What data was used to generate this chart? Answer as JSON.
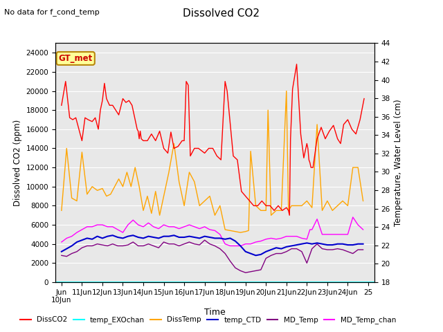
{
  "title": "Dissolved CO2",
  "subtitle": "No data for f_cond_temp",
  "xlabel": "Time",
  "ylabel_left": "Dissolved CO2 (ppm)",
  "ylabel_right": "Temperature, Water Level (cm)",
  "ylim_left": [
    0,
    25000
  ],
  "ylim_right": [
    18,
    44
  ],
  "yticks_left": [
    0,
    2000,
    4000,
    6000,
    8000,
    10000,
    12000,
    14000,
    16000,
    18000,
    20000,
    22000,
    24000
  ],
  "yticks_right": [
    18,
    20,
    22,
    24,
    26,
    28,
    30,
    32,
    34,
    36,
    38,
    40,
    42,
    44
  ],
  "x_start": 9.7,
  "x_end": 25.3,
  "xtick_positions": [
    10,
    11,
    12,
    13,
    14,
    15,
    16,
    17,
    18,
    19,
    20,
    21,
    22,
    23,
    24,
    25
  ],
  "xtick_labels": [
    "Jun\n10Jun",
    "11Jun",
    "12Jun",
    "13Jun",
    "14Jun",
    "15Jun",
    "16Jun",
    "17Jun",
    "18Jun",
    "19Jun",
    "20Jun",
    "21Jun",
    "22Jun",
    "23Jun",
    "24Jun",
    "25"
  ],
  "plot_bg_color": "#e8e8e8",
  "DissCO2_color": "#ff0000",
  "DissTemp_color": "#ffa500",
  "temp_CTD_color": "#0000cd",
  "MD_Temp_color": "#800080",
  "MD_Temp_chan_color": "#ff00ff",
  "temp_EXOchan_color": "#00ffff",
  "DissCO2_x": [
    10,
    10.2,
    10.4,
    10.55,
    10.7,
    11.0,
    11.15,
    11.3,
    11.5,
    11.65,
    11.8,
    11.9,
    12.0,
    12.1,
    12.2,
    12.35,
    12.5,
    12.65,
    12.8,
    13.0,
    13.15,
    13.3,
    13.45,
    13.5,
    13.55,
    13.6,
    13.7,
    13.75,
    13.8,
    13.85,
    13.9,
    14.0,
    14.2,
    14.4,
    14.6,
    14.8,
    15.0,
    15.2,
    15.35,
    15.5,
    15.7,
    15.9,
    16.0,
    16.1,
    16.2,
    16.3,
    16.5,
    16.7,
    17.0,
    17.2,
    17.4,
    17.6,
    17.8,
    18.0,
    18.1,
    18.4,
    18.6,
    18.8,
    19.0,
    19.2,
    19.4,
    19.6,
    19.8,
    20.0,
    20.2,
    20.4,
    20.6,
    20.8,
    21.0,
    21.1,
    21.15,
    21.2,
    21.3,
    21.5,
    21.7,
    21.85,
    22.0,
    22.05,
    22.1,
    22.15,
    22.2,
    22.3,
    22.5,
    22.7,
    22.9,
    23.1,
    23.3,
    23.5,
    23.65,
    23.8,
    24.0,
    24.2,
    24.4,
    24.6,
    24.8
  ],
  "DissCO2_y": [
    18500,
    21000,
    17200,
    17000,
    17200,
    14800,
    17200,
    17000,
    16800,
    17200,
    16000,
    18000,
    19000,
    20800,
    19200,
    18500,
    18500,
    18000,
    17500,
    19200,
    18800,
    19000,
    18500,
    18000,
    17500,
    17000,
    16000,
    15800,
    15000,
    15800,
    15000,
    14800,
    14800,
    15500,
    14800,
    15800,
    14000,
    13500,
    15700,
    14000,
    14200,
    14800,
    14800,
    21000,
    20600,
    13200,
    14000,
    14000,
    13500,
    14000,
    14000,
    13200,
    12800,
    21000,
    20000,
    13200,
    12800,
    9500,
    9000,
    8500,
    8000,
    8000,
    8500,
    8000,
    8000,
    7500,
    8000,
    7500,
    7800,
    7500,
    7000,
    15000,
    20200,
    22800,
    15500,
    13000,
    14500,
    14000,
    12800,
    12500,
    12000,
    12000,
    15000,
    16200,
    15000,
    15800,
    16400,
    15000,
    14500,
    16500,
    17000,
    16000,
    15500,
    17000,
    19200
  ],
  "DissTemp_x": [
    10,
    10.25,
    10.5,
    10.75,
    11.0,
    11.25,
    11.5,
    11.75,
    12.0,
    12.2,
    12.4,
    12.6,
    12.8,
    13.0,
    13.2,
    13.4,
    13.6,
    13.8,
    14.0,
    14.2,
    14.4,
    14.6,
    14.8,
    15.0,
    15.25,
    15.5,
    15.75,
    16.0,
    16.25,
    16.5,
    16.75,
    17.0,
    17.25,
    17.5,
    17.75,
    18.0,
    18.25,
    18.5,
    18.75,
    19.0,
    19.15,
    19.25,
    19.5,
    19.75,
    20.0,
    20.1,
    20.25,
    20.5,
    20.75,
    21.0,
    21.1,
    21.25,
    21.5,
    21.75,
    22.0,
    22.25,
    22.5,
    22.75,
    23.0,
    23.25,
    23.5,
    23.75,
    24.0,
    24.25,
    24.5,
    24.75
  ],
  "DissTemp_y": [
    7500,
    14000,
    8800,
    8500,
    13600,
    9200,
    10000,
    9600,
    9800,
    9000,
    9200,
    10000,
    10800,
    10000,
    11500,
    10000,
    12000,
    10000,
    7500,
    9000,
    7200,
    9500,
    7000,
    9000,
    11500,
    14500,
    10500,
    8000,
    11500,
    10500,
    8000,
    8500,
    9000,
    7000,
    8000,
    5500,
    5400,
    5300,
    5200,
    5300,
    5400,
    13700,
    8000,
    7500,
    7500,
    18000,
    7000,
    7500,
    7500,
    20000,
    7500,
    8000,
    8000,
    8000,
    8500,
    7800,
    16500,
    7500,
    8500,
    7500,
    8000,
    8500,
    8000,
    12000,
    12000,
    8500
  ],
  "temp_CTD_x": [
    10,
    10.25,
    10.5,
    10.75,
    11.0,
    11.25,
    11.5,
    11.75,
    12.0,
    12.25,
    12.5,
    12.75,
    13.0,
    13.25,
    13.5,
    13.75,
    14.0,
    14.25,
    14.5,
    14.75,
    15.0,
    15.25,
    15.5,
    15.75,
    16.0,
    16.25,
    16.5,
    16.75,
    17.0,
    17.25,
    17.5,
    17.75,
    18.0,
    18.25,
    18.5,
    18.75,
    19.0,
    19.25,
    19.5,
    19.75,
    20.0,
    20.25,
    20.5,
    20.75,
    21.0,
    21.25,
    21.5,
    21.75,
    22.0,
    22.25,
    22.5,
    22.75,
    23.0,
    23.25,
    23.5,
    23.75,
    24.0,
    24.25,
    24.5,
    24.75
  ],
  "temp_CTD_y": [
    3200,
    3500,
    3800,
    4200,
    4400,
    4600,
    4500,
    4800,
    4600,
    4800,
    4900,
    4700,
    4600,
    4800,
    4900,
    4700,
    4600,
    4800,
    4700,
    4600,
    4800,
    4800,
    4900,
    4700,
    4700,
    4800,
    4700,
    4600,
    4800,
    4700,
    4600,
    4600,
    4500,
    4600,
    4300,
    3800,
    3200,
    3000,
    2800,
    2900,
    3200,
    3400,
    3600,
    3500,
    3700,
    3800,
    3900,
    4000,
    4100,
    4000,
    4100,
    4000,
    3900,
    3900,
    4000,
    4000,
    3900,
    3900,
    4000,
    4000
  ],
  "MD_Temp_x": [
    10,
    10.25,
    10.5,
    10.75,
    11.0,
    11.25,
    11.5,
    11.75,
    12.0,
    12.25,
    12.5,
    12.75,
    13.0,
    13.25,
    13.5,
    13.75,
    14.0,
    14.25,
    14.5,
    14.75,
    15.0,
    15.25,
    15.5,
    15.75,
    16.0,
    16.25,
    16.5,
    16.75,
    17.0,
    17.25,
    17.5,
    17.75,
    18.0,
    18.25,
    18.5,
    18.75,
    19.0,
    19.25,
    19.5,
    19.75,
    20.0,
    20.25,
    20.5,
    20.75,
    21.0,
    21.25,
    21.5,
    21.75,
    22.0,
    22.25,
    22.5,
    22.75,
    23.0,
    23.25,
    23.5,
    23.75,
    24.0,
    24.25,
    24.5,
    24.75
  ],
  "MD_Temp_y": [
    2800,
    2700,
    3000,
    3200,
    3600,
    3800,
    3800,
    4000,
    3900,
    3800,
    4000,
    3800,
    3800,
    3900,
    4200,
    3800,
    3800,
    4000,
    3800,
    3600,
    4200,
    4000,
    4000,
    3800,
    4000,
    4200,
    4000,
    3900,
    4400,
    4000,
    3800,
    3500,
    3000,
    2200,
    1500,
    1200,
    1000,
    1100,
    1200,
    1300,
    2500,
    2800,
    3000,
    3000,
    3200,
    3500,
    3500,
    3200,
    2000,
    3500,
    4000,
    3500,
    3400,
    3400,
    3500,
    3400,
    3200,
    3000,
    3400,
    3400
  ],
  "MD_Temp_chan_x": [
    10,
    10.25,
    10.5,
    10.75,
    11.0,
    11.25,
    11.5,
    11.75,
    12.0,
    12.25,
    12.5,
    12.75,
    13.0,
    13.25,
    13.5,
    13.75,
    14.0,
    14.25,
    14.5,
    14.75,
    15.0,
    15.25,
    15.5,
    15.75,
    16.0,
    16.25,
    16.5,
    16.75,
    17.0,
    17.25,
    17.5,
    17.75,
    18.0,
    18.25,
    18.5,
    18.75,
    19.0,
    19.25,
    19.5,
    19.75,
    20.0,
    20.25,
    20.5,
    20.75,
    21.0,
    21.25,
    21.5,
    21.75,
    22.0,
    22.15,
    22.25,
    22.5,
    22.75,
    23.0,
    23.25,
    23.5,
    23.75,
    24.0,
    24.25,
    24.5,
    24.75
  ],
  "MD_Temp_chan_y": [
    4200,
    4600,
    4800,
    5200,
    5500,
    5800,
    5800,
    6000,
    6000,
    5800,
    5800,
    5500,
    5200,
    6000,
    6500,
    6000,
    5800,
    6200,
    5800,
    5600,
    6000,
    5800,
    5800,
    5600,
    5800,
    6000,
    5800,
    5600,
    5800,
    5500,
    5400,
    5000,
    4000,
    3800,
    3800,
    3800,
    4000,
    4000,
    4200,
    4300,
    4500,
    4600,
    4500,
    4600,
    4800,
    4800,
    4800,
    4600,
    4500,
    5500,
    5500,
    6600,
    5000,
    5000,
    5000,
    5000,
    5000,
    5000,
    6800,
    6000,
    5500
  ]
}
